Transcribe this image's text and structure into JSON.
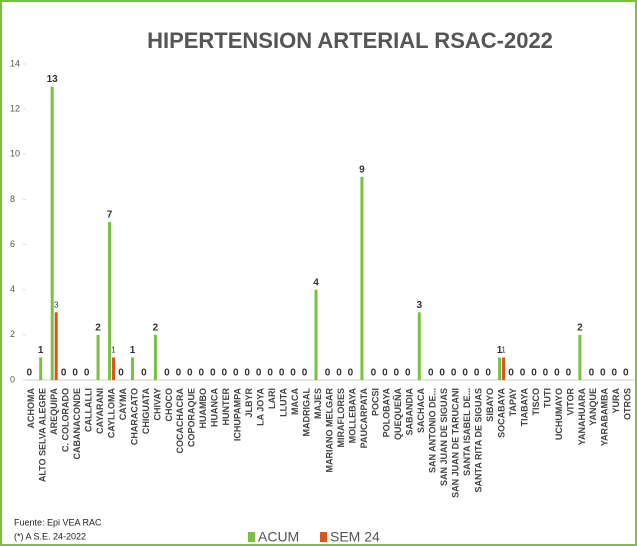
{
  "chart_data": {
    "type": "bar",
    "title": "HIPERTENSION ARTERIAL RSAC-2022",
    "categories": [
      "ACHOMA",
      "ALTO SELVA ALEGRE",
      "AREQUIPA",
      "C. COLORADO",
      "CABANACONDE",
      "CALLALLI",
      "CAYARANI",
      "CAYLLOMA",
      "CAYMA",
      "CHARACATO",
      "CHIGUATA",
      "CHIVAY",
      "CHOCO",
      "COCACHACRA",
      "COPORAQUE",
      "HUAMBO",
      "HUANCA",
      "HUNTER",
      "ICHUPAMPA",
      "JLBYR",
      "LA JOYA",
      "LARI",
      "LLUTA",
      "MACA",
      "MADRIGAL",
      "MAJES",
      "MARIANO MELGAR",
      "MIRAFLORES",
      "MOLLEBAYA",
      "PAUCARPATA",
      "POCSI",
      "POLOBAYA",
      "QUEQUEÑA",
      "SABANDIA",
      "SACHACA",
      "SAN ANTONIO DE...",
      "SAN JUAN DE SIGUAS",
      "SAN JUAN DE TARUCANI",
      "SANTA ISABEL DE...",
      "SANTA RITA DE SIGUAS",
      "SIBAYO",
      "SOCABAYA",
      "TAPAY",
      "TIABAYA",
      "TISCO",
      "TUTI",
      "UCHUMAYO",
      "VITOR",
      "YANAHUARA",
      "YANQUE",
      "YARABAMBA",
      "YURA",
      "OTROS"
    ],
    "series": [
      {
        "name": "ACUM",
        "color": "#7ac143",
        "values": [
          0,
          1,
          13,
          0,
          0,
          0,
          2,
          7,
          0,
          1,
          0,
          2,
          0,
          0,
          0,
          0,
          0,
          0,
          0,
          0,
          0,
          0,
          0,
          0,
          0,
          4,
          0,
          0,
          0,
          9,
          0,
          0,
          0,
          0,
          3,
          0,
          0,
          0,
          0,
          0,
          0,
          1,
          0,
          0,
          0,
          0,
          0,
          0,
          2,
          0,
          0,
          0,
          0
        ]
      },
      {
        "name": "SEM 24",
        "color": "#d9541e",
        "values": [
          0,
          0,
          3,
          0,
          0,
          0,
          0,
          1,
          0,
          0,
          0,
          0,
          0,
          0,
          0,
          0,
          0,
          0,
          0,
          0,
          0,
          0,
          0,
          0,
          0,
          0,
          0,
          0,
          0,
          0,
          0,
          0,
          0,
          0,
          0,
          0,
          0,
          0,
          0,
          0,
          0,
          1,
          0,
          0,
          0,
          0,
          0,
          0,
          0,
          0,
          0,
          0,
          0
        ]
      }
    ],
    "ylim": [
      0,
      14
    ],
    "yticks": [
      0,
      2,
      4,
      6,
      8,
      10,
      12,
      14
    ],
    "notes": [
      "Fuente: Epi VEA RAC",
      "(*) A S.E. 24-2022"
    ]
  }
}
